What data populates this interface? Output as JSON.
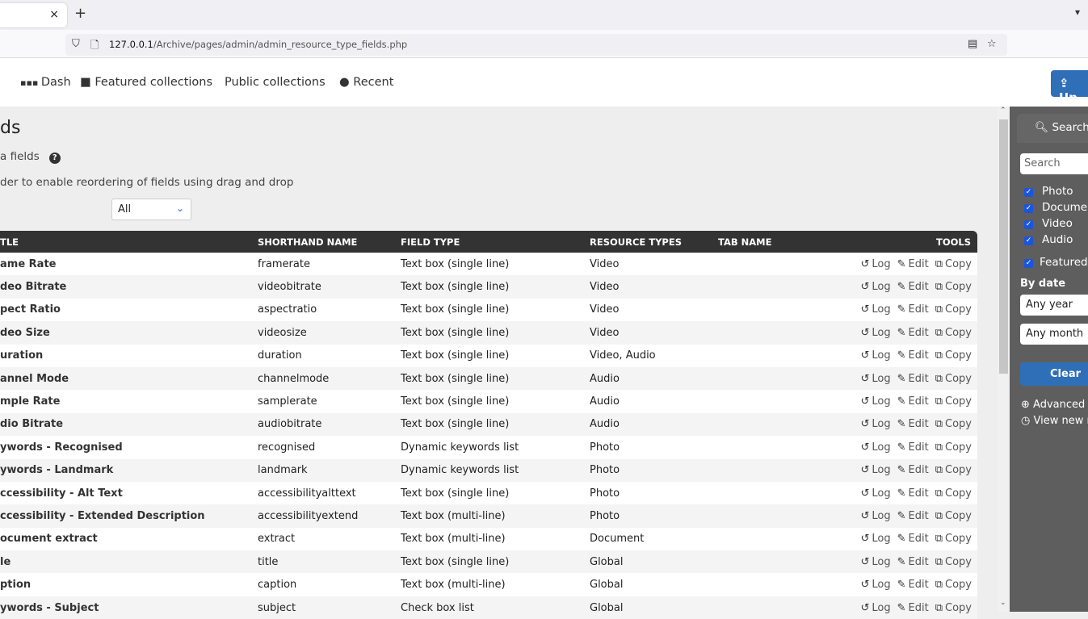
{
  "browser": {
    "tab_close": "×",
    "new_tab": "+",
    "tab_list": "⌄",
    "url_host": "127.0.0.1",
    "url_path": "/Archive/pages/admin/admin_resource_type_fields.php"
  },
  "nav": {
    "items": [
      {
        "icon": "grid-icon",
        "label": "Dash"
      },
      {
        "icon": "folder-icon",
        "label": "Featured collections"
      },
      {
        "label": "Public collections"
      },
      {
        "icon": "clock-icon",
        "label": "Recent"
      }
    ],
    "upload_label": "Up"
  },
  "page": {
    "title": "ds",
    "subtitle": "a fields",
    "hint": "der to enable reordering of fields using drag and drop",
    "filter_value": "All"
  },
  "table": {
    "headers": [
      "TLE",
      "SHORTHAND NAME",
      "FIELD TYPE",
      "RESOURCE TYPES",
      "TAB NAME",
      "TOOLS"
    ],
    "tools": [
      "Log",
      "Edit",
      "Copy"
    ],
    "rows": [
      [
        "ame Rate",
        "framerate",
        "Text box (single line)",
        "Video",
        ""
      ],
      [
        "deo Bitrate",
        "videobitrate",
        "Text box (single line)",
        "Video",
        ""
      ],
      [
        "pect Ratio",
        "aspectratio",
        "Text box (single line)",
        "Video",
        ""
      ],
      [
        "deo Size",
        "videosize",
        "Text box (single line)",
        "Video",
        ""
      ],
      [
        "uration",
        "duration",
        "Text box (single line)",
        "Video, Audio",
        ""
      ],
      [
        "annel Mode",
        "channelmode",
        "Text box (single line)",
        "Audio",
        ""
      ],
      [
        "mple Rate",
        "samplerate",
        "Text box (single line)",
        "Audio",
        ""
      ],
      [
        "dio Bitrate",
        "audiobitrate",
        "Text box (single line)",
        "Audio",
        ""
      ],
      [
        "ywords - Recognised",
        "recognised",
        "Dynamic keywords list",
        "Photo",
        ""
      ],
      [
        "ywords - Landmark",
        "landmark",
        "Dynamic keywords list",
        "Photo",
        ""
      ],
      [
        "ccessibility - Alt Text",
        "accessibilityalttext",
        "Text box (single line)",
        "Photo",
        ""
      ],
      [
        "ccessibility - Extended Description",
        "accessibilityextend",
        "Text box (multi-line)",
        "Photo",
        ""
      ],
      [
        "ocument extract",
        "extract",
        "Text box (multi-line)",
        "Document",
        ""
      ],
      [
        "le",
        "title",
        "Text box (single line)",
        "Global",
        ""
      ],
      [
        "ption",
        "caption",
        "Text box (multi-line)",
        "Global",
        ""
      ],
      [
        "ywords - Subject",
        "subject",
        "Check box list",
        "Global",
        ""
      ]
    ]
  },
  "sidebar": {
    "tab": "Search",
    "search_placeholder": "Search",
    "types": [
      "Photo",
      "Docume",
      "Video",
      "Audio"
    ],
    "featured": "Featured",
    "by_date": "By date",
    "year": "Any year",
    "month": "Any month",
    "clear": "Clear",
    "advanced": "Advanced s",
    "view_new": "View new r"
  },
  "colors": {
    "accent": "#2f6fb7",
    "header": "#333333",
    "sidebar": "#5e5e5e",
    "checkbox": "#1a56db"
  }
}
